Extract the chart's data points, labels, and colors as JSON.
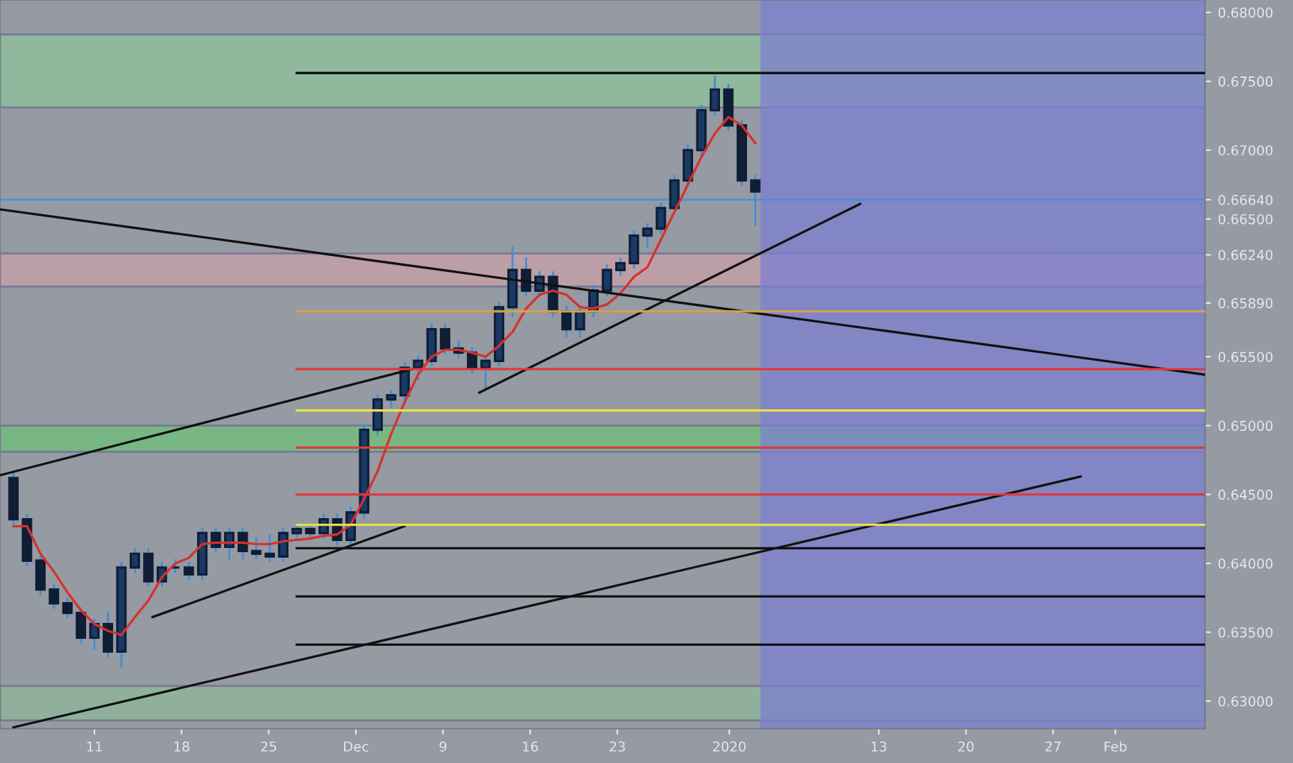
{
  "chart_data": {
    "type": "candlestick",
    "color": "#0f1e35",
    "x": [
      "2019-11-04T12:00",
      "2019-11-05T14:00",
      "2019-11-06T16:00",
      "2019-11-07T18:00",
      "2019-11-08T20:00",
      "2019-11-09T22:00",
      "2019-11-11T00:00",
      "2019-11-12T02:00",
      "2019-11-13T04:00",
      "2019-11-14T06:00",
      "2019-11-15T08:00",
      "2019-11-16T10:00",
      "2019-11-17T12:00",
      "2019-11-18T14:00",
      "2019-11-19T16:00",
      "2019-11-20T18:00",
      "2019-11-21T20:00",
      "2019-11-22T22:00",
      "2019-11-24T00:00",
      "2019-11-25T02:00",
      "2019-11-26T04:00",
      "2019-11-27T06:00",
      "2019-11-28T08:00",
      "2019-11-29T10:00",
      "2019-11-30T12:00",
      "2019-12-01T14:00",
      "2019-12-02T16:00",
      "2019-12-03T18:00",
      "2019-12-04T20:00",
      "2019-12-05T22:00",
      "2019-12-07T00:00",
      "2019-12-08T02:00",
      "2019-12-09T04:00",
      "2019-12-10T06:00",
      "2019-12-11T08:00",
      "2019-12-12T10:00",
      "2019-12-13T12:00",
      "2019-12-14T14:00",
      "2019-12-15T16:00",
      "2019-12-16T18:00",
      "2019-12-17T20:00",
      "2019-12-18T22:00",
      "2019-12-20T00:00",
      "2019-12-21T02:00",
      "2019-12-22T04:00",
      "2019-12-23T06:00",
      "2019-12-24T08:00",
      "2019-12-25T10:00",
      "2019-12-26T12:00",
      "2019-12-27T14:00",
      "2019-12-28T16:00",
      "2019-12-29T18:00",
      "2019-12-30T20:00",
      "2019-12-31T22:00",
      "2020-01-02T00:00",
      "2020-01-03T02:00"
    ],
    "ohlc": [
      [
        0.6462,
        0.6466,
        0.6428,
        0.6432
      ],
      [
        0.6432,
        0.6436,
        0.6398,
        0.6402
      ],
      [
        0.6402,
        0.6406,
        0.6377,
        0.6381
      ],
      [
        0.6381,
        0.6385,
        0.6367,
        0.6371
      ],
      [
        0.6371,
        0.6375,
        0.636,
        0.6364
      ],
      [
        0.6364,
        0.6368,
        0.6342,
        0.6346
      ],
      [
        0.6346,
        0.636,
        0.6337,
        0.6356
      ],
      [
        0.6356,
        0.6365,
        0.6332,
        0.6336
      ],
      [
        0.6336,
        0.6401,
        0.6324,
        0.6397
      ],
      [
        0.6397,
        0.6411,
        0.6393,
        0.6407
      ],
      [
        0.6407,
        0.6411,
        0.6383,
        0.6387
      ],
      [
        0.6387,
        0.6401,
        0.6383,
        0.6397
      ],
      [
        0.6397,
        0.6403,
        0.6393,
        0.6397
      ],
      [
        0.6397,
        0.6401,
        0.6388,
        0.6392
      ],
      [
        0.6392,
        0.6426,
        0.6388,
        0.6422
      ],
      [
        0.6422,
        0.6426,
        0.6408,
        0.6412
      ],
      [
        0.6412,
        0.6426,
        0.6403,
        0.6422
      ],
      [
        0.6422,
        0.6426,
        0.6403,
        0.6409
      ],
      [
        0.6409,
        0.6419,
        0.6403,
        0.6407
      ],
      [
        0.6407,
        0.6421,
        0.6401,
        0.6405
      ],
      [
        0.6405,
        0.6426,
        0.6401,
        0.6422
      ],
      [
        0.6422,
        0.6429,
        0.6418,
        0.6425
      ],
      [
        0.6425,
        0.6429,
        0.6418,
        0.6422
      ],
      [
        0.6422,
        0.6436,
        0.6418,
        0.6432
      ],
      [
        0.6432,
        0.6436,
        0.6413,
        0.6417
      ],
      [
        0.6417,
        0.6441,
        0.6413,
        0.6437
      ],
      [
        0.6437,
        0.6501,
        0.6433,
        0.6497
      ],
      [
        0.6497,
        0.6523,
        0.6493,
        0.6519
      ],
      [
        0.6519,
        0.6526,
        0.6513,
        0.6522
      ],
      [
        0.6522,
        0.6546,
        0.6518,
        0.6542
      ],
      [
        0.6542,
        0.6551,
        0.6533,
        0.6547
      ],
      [
        0.6547,
        0.6574,
        0.6543,
        0.657
      ],
      [
        0.657,
        0.6574,
        0.6552,
        0.6556
      ],
      [
        0.6556,
        0.6562,
        0.6549,
        0.6553
      ],
      [
        0.6553,
        0.6557,
        0.6538,
        0.6542
      ],
      [
        0.6542,
        0.6551,
        0.6525,
        0.6547
      ],
      [
        0.6547,
        0.659,
        0.6543,
        0.6586
      ],
      [
        0.6586,
        0.663,
        0.6579,
        0.6613
      ],
      [
        0.6613,
        0.6622,
        0.6594,
        0.6598
      ],
      [
        0.6598,
        0.6612,
        0.6594,
        0.6608
      ],
      [
        0.6608,
        0.6612,
        0.6579,
        0.6583
      ],
      [
        0.6583,
        0.6587,
        0.6564,
        0.657
      ],
      [
        0.657,
        0.6587,
        0.6564,
        0.6583
      ],
      [
        0.6583,
        0.6602,
        0.6579,
        0.6598
      ],
      [
        0.6598,
        0.6617,
        0.6594,
        0.6613
      ],
      [
        0.6613,
        0.6622,
        0.6609,
        0.6618
      ],
      [
        0.6618,
        0.6642,
        0.6614,
        0.6638
      ],
      [
        0.6638,
        0.6647,
        0.6629,
        0.6643
      ],
      [
        0.6643,
        0.6662,
        0.6639,
        0.6658
      ],
      [
        0.6658,
        0.6682,
        0.6654,
        0.6678
      ],
      [
        0.6678,
        0.6704,
        0.6674,
        0.67
      ],
      [
        0.67,
        0.6733,
        0.6696,
        0.6729
      ],
      [
        0.6729,
        0.6754,
        0.6725,
        0.6744
      ],
      [
        0.6744,
        0.6748,
        0.6714,
        0.6718
      ],
      [
        0.6718,
        0.6722,
        0.6674,
        0.6678
      ],
      [
        0.6678,
        0.6682,
        0.6645,
        0.667
      ]
    ],
    "series": [
      {
        "type": "line",
        "color": "#d8302c",
        "values": [
          0.6427,
          0.6427,
          0.6407,
          0.6394,
          0.6379,
          0.6366,
          0.6356,
          0.6351,
          0.6348,
          0.6361,
          0.6373,
          0.639,
          0.64,
          0.6404,
          0.6414,
          0.6415,
          0.6415,
          0.6415,
          0.6414,
          0.6414,
          0.6416,
          0.6417,
          0.6418,
          0.642,
          0.6421,
          0.6428,
          0.6447,
          0.6467,
          0.6494,
          0.6517,
          0.6537,
          0.655,
          0.6555,
          0.6555,
          0.6553,
          0.655,
          0.6558,
          0.6568,
          0.6585,
          0.6595,
          0.6598,
          0.6595,
          0.6586,
          0.6585,
          0.6588,
          0.6596,
          0.6608,
          0.6615,
          0.6635,
          0.6655,
          0.6675,
          0.6695,
          0.6712,
          0.6724,
          0.6718,
          0.6705
        ]
      },
      {
        "type": "line",
        "color": "#111111",
        "x": [
          "2019-11-03T10:00",
          "2020-02-08T05:00"
        ],
        "values": [
          0.6657,
          0.6537
        ]
      },
      {
        "type": "line",
        "color": "#111111",
        "x": [
          "2019-11-03T10:00",
          "2019-12-06T12:00"
        ],
        "values": [
          0.6464,
          0.6541
        ]
      },
      {
        "type": "line",
        "color": "#111111",
        "x": [
          "2019-12-11T22:00",
          "2020-01-11T12:00"
        ],
        "values": [
          0.6524,
          0.6661
        ]
      },
      {
        "type": "line",
        "color": "#111111",
        "x": [
          "2019-11-15T16:00",
          "2019-12-05T22:00"
        ],
        "values": [
          0.6361,
          0.6427
        ]
      },
      {
        "type": "line",
        "color": "#111111",
        "x": [
          "2019-11-04T12:00",
          "2020-01-29T05:00"
        ],
        "values": [
          0.6281,
          0.6463
        ]
      },
      {
        "type": "line",
        "color": "#111111",
        "x": [
          "2019-11-27T06:00",
          "2020-02-08T05:00"
        ],
        "values": [
          0.6756,
          0.6756
        ]
      },
      {
        "type": "line",
        "color": "#111111",
        "x": [
          "2019-11-27T06:00",
          "2020-02-08T05:00"
        ],
        "values": [
          0.6411,
          0.6411
        ]
      },
      {
        "type": "line",
        "color": "#111111",
        "x": [
          "2019-11-27T06:00",
          "2020-02-08T05:00"
        ],
        "values": [
          0.6376,
          0.6376
        ]
      },
      {
        "type": "line",
        "color": "#111111",
        "x": [
          "2019-11-27T06:00",
          "2020-02-08T05:00"
        ],
        "values": [
          0.6341,
          0.6341
        ]
      },
      {
        "type": "line",
        "color": "#d4a24a",
        "x": [
          "2019-11-27T06:00",
          "2020-02-08T05:00"
        ],
        "values": [
          0.6583,
          0.6583
        ]
      },
      {
        "type": "line",
        "color": "#e0383b",
        "x": [
          "2019-11-27T06:00",
          "2020-02-08T05:00"
        ],
        "values": [
          0.6541,
          0.6541
        ]
      },
      {
        "type": "line",
        "color": "#e8e04a",
        "x": [
          "2019-11-27T06:00",
          "2020-02-08T05:00"
        ],
        "values": [
          0.6511,
          0.6511
        ]
      },
      {
        "type": "line",
        "color": "#e0383b",
        "x": [
          "2019-11-27T06:00",
          "2020-02-08T05:00"
        ],
        "values": [
          0.6484,
          0.6484
        ]
      },
      {
        "type": "line",
        "color": "#e0383b",
        "x": [
          "2019-11-27T06:00",
          "2020-02-08T05:00"
        ],
        "values": [
          0.645,
          0.645
        ]
      },
      {
        "type": "line",
        "color": "#e8e04a",
        "x": [
          "2019-11-27T06:00",
          "2020-02-08T05:00"
        ],
        "values": [
          0.6428,
          0.6428
        ]
      }
    ],
    "ref_lines": [
      {
        "axis": "y",
        "value": 0.6664,
        "color": "#4a90d9"
      }
    ],
    "bands": [
      {
        "axis": "y",
        "from": 0.6731,
        "to": 0.6784,
        "color": "#8fc39a"
      },
      {
        "axis": "y",
        "from": 0.6481,
        "to": 0.65,
        "color": "#6fc07a"
      },
      {
        "axis": "y",
        "from": 0.6601,
        "to": 0.6625,
        "color": "#c9a0a8"
      },
      {
        "axis": "y",
        "from": 0.6286,
        "to": 0.6311,
        "color": "#8fb89a"
      },
      {
        "axis": "x",
        "from": "2020-01-03T12:00",
        "to": "2020-02-08T05:00",
        "color": "#7c7fd0"
      }
    ],
    "xlim": [
      "2019-11-03T10:00",
      "2020-02-08T05:00"
    ],
    "ylim": [
      0.628,
      0.6809
    ],
    "xticks": [
      {
        "value": "2019-11-11",
        "label": "11"
      },
      {
        "value": "2019-11-18",
        "label": "18"
      },
      {
        "value": "2019-11-25",
        "label": "25"
      },
      {
        "value": "2019-12-02",
        "label": "Dec"
      },
      {
        "value": "2019-12-09",
        "label": "9"
      },
      {
        "value": "2019-12-16",
        "label": "16"
      },
      {
        "value": "2019-12-23",
        "label": "23"
      },
      {
        "value": "2020-01-01",
        "label": "2020"
      },
      {
        "value": "2020-01-13",
        "label": "13"
      },
      {
        "value": "2020-01-20",
        "label": "20"
      },
      {
        "value": "2020-01-27",
        "label": "27"
      },
      {
        "value": "2020-02-01",
        "label": "Feb"
      }
    ],
    "yticks": [
      {
        "value": 0.63,
        "label": "0.63000"
      },
      {
        "value": 0.635,
        "label": "0.63500"
      },
      {
        "value": 0.64,
        "label": "0.64000"
      },
      {
        "value": 0.645,
        "label": "0.64500"
      },
      {
        "value": 0.65,
        "label": "0.65000"
      },
      {
        "value": 0.655,
        "label": "0.65500"
      },
      {
        "value": 0.6589,
        "label": "0.65890"
      },
      {
        "value": 0.6624,
        "label": "0.66240"
      },
      {
        "value": 0.665,
        "label": "0.66500"
      },
      {
        "value": 0.6664,
        "label": "0.66640"
      },
      {
        "value": 0.67,
        "label": "0.67000"
      },
      {
        "value": 0.675,
        "label": "0.67500"
      },
      {
        "value": 0.68,
        "label": "0.68000"
      }
    ],
    "grid": false,
    "legend": false
  }
}
